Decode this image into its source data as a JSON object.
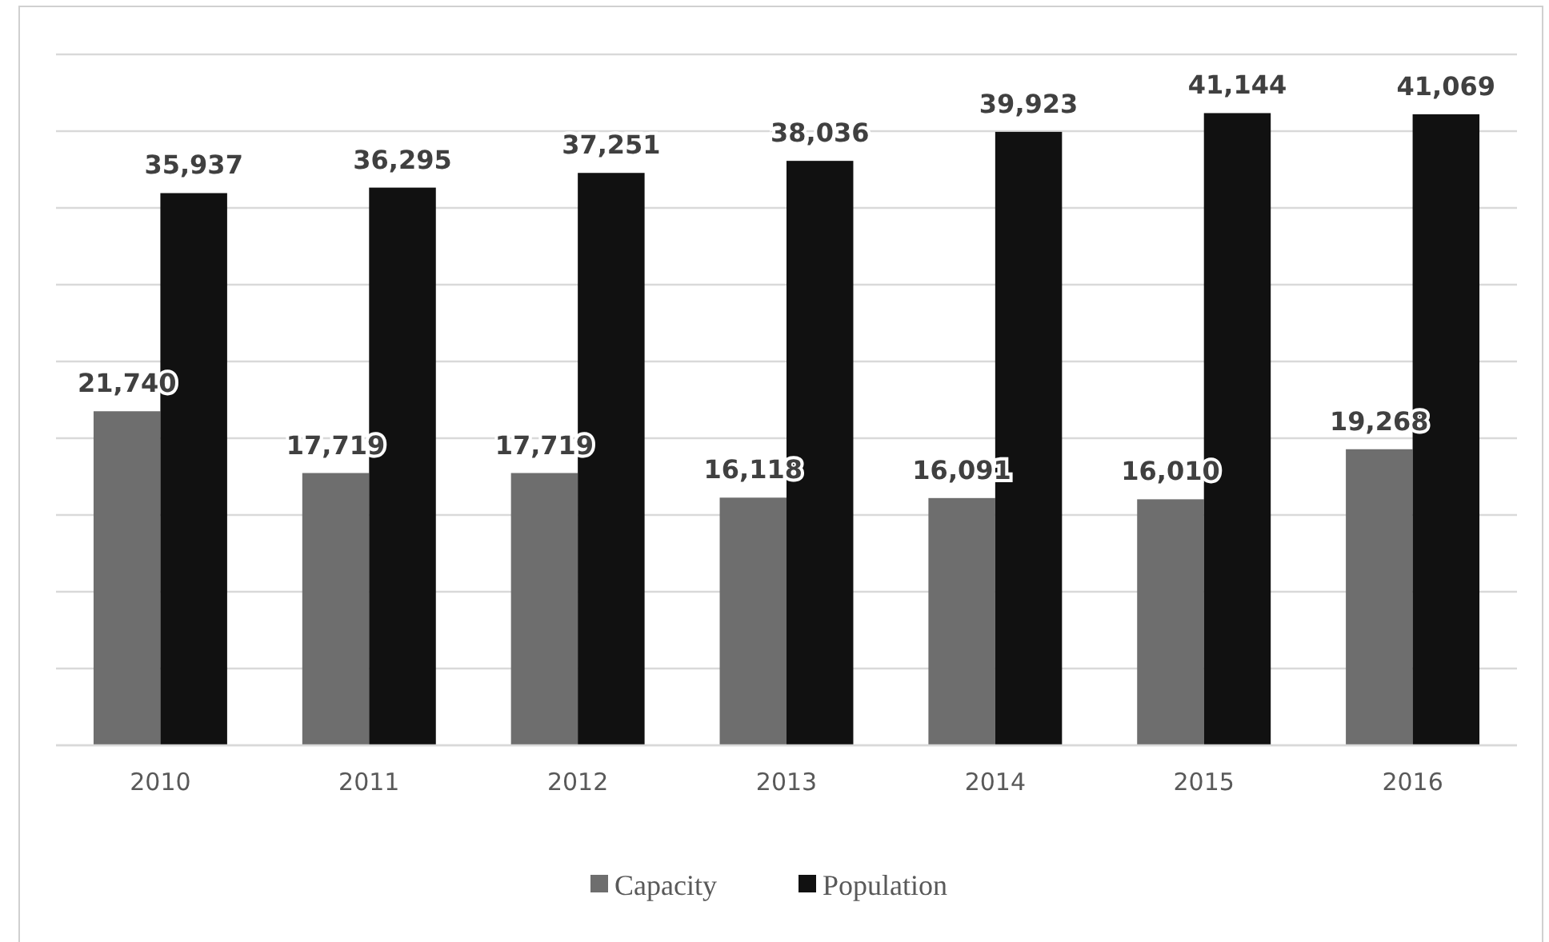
{
  "chart_data": {
    "type": "bar",
    "categories": [
      "2010",
      "2011",
      "2012",
      "2013",
      "2014",
      "2015",
      "2016"
    ],
    "series": [
      {
        "name": "Capacity",
        "color": "#6e6e6e",
        "values": [
          21740,
          17719,
          17719,
          16118,
          16091,
          16010,
          19268
        ],
        "value_labels": [
          "21,740",
          "17,719",
          "17,719",
          "16,118",
          "16,091",
          "16,010",
          "19,268"
        ]
      },
      {
        "name": "Population",
        "color": "#111111",
        "values": [
          35937,
          36295,
          37251,
          38036,
          39923,
          41144,
          41069
        ],
        "value_labels": [
          "35,937",
          "36,295",
          "37,251",
          "38,036",
          "39,923",
          "41,144",
          "41,069"
        ]
      }
    ],
    "grid": true,
    "tick_labels": "x",
    "legend": "bottom"
  }
}
